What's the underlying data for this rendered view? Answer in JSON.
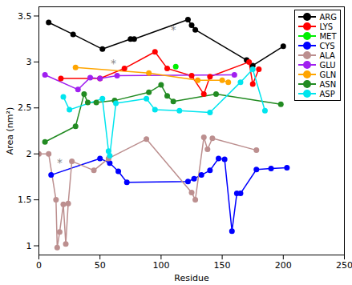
{
  "chart_data": {
    "type": "line",
    "marker": "circle",
    "legend": "top-right",
    "x_label": "Residue",
    "y_label": "Area (nm²)",
    "xlim": [
      0,
      250
    ],
    "xticks": [
      0,
      50,
      100,
      150,
      200,
      250
    ],
    "ylim": [
      0.9,
      3.6
    ],
    "yticks": [
      1,
      1.5,
      2,
      2.5,
      3,
      3.5
    ],
    "series": [
      {
        "name": "ARG",
        "color": "#000000",
        "x": [
          8,
          28,
          52,
          75,
          78,
          122,
          125,
          128,
          170,
          175,
          200
        ],
        "values": [
          3.43,
          3.3,
          3.14,
          3.25,
          3.25,
          3.46,
          3.4,
          3.35,
          3.02,
          2.96,
          3.17
        ]
      },
      {
        "name": "LYS",
        "color": "#ff0000",
        "x": [
          18,
          50,
          70,
          95,
          105,
          125,
          135,
          140,
          172,
          175,
          180
        ],
        "values": [
          2.82,
          2.82,
          2.93,
          3.11,
          2.93,
          2.85,
          2.65,
          2.84,
          3.0,
          2.76,
          2.92
        ]
      },
      {
        "name": "MET",
        "color": "#00ee00",
        "x": [
          112
        ],
        "values": [
          2.95
        ]
      },
      {
        "name": "CYS",
        "color": "#0000ff",
        "x": [
          10,
          50,
          58,
          65,
          72,
          122,
          127,
          133,
          140,
          147,
          152,
          158,
          162,
          165,
          178,
          190,
          203
        ],
        "values": [
          1.77,
          1.95,
          1.9,
          1.81,
          1.69,
          1.7,
          1.73,
          1.77,
          1.82,
          1.95,
          1.94,
          1.16,
          1.57,
          1.57,
          1.83,
          1.84,
          1.85
        ]
      },
      {
        "name": "ALA",
        "color": "#bc8f8f",
        "x": [
          0,
          8,
          14,
          15,
          17,
          20,
          22,
          24,
          27,
          45,
          57,
          88,
          125,
          128,
          135,
          138,
          142,
          178
        ],
        "values": [
          2.0,
          2.0,
          1.5,
          0.98,
          1.15,
          1.45,
          1.02,
          1.46,
          1.92,
          1.82,
          1.95,
          2.16,
          1.58,
          1.5,
          2.18,
          2.05,
          2.17,
          2.04
        ]
      },
      {
        "name": "GLU",
        "color": "#a020f0",
        "x": [
          5,
          32,
          42,
          50,
          64,
          160
        ],
        "values": [
          2.86,
          2.7,
          2.83,
          2.82,
          2.85,
          2.86
        ]
      },
      {
        "name": "GLN",
        "color": "#ffa500",
        "x": [
          30,
          90,
          130,
          150,
          155
        ],
        "values": [
          2.94,
          2.88,
          2.8,
          2.8,
          2.78
        ]
      },
      {
        "name": "ASN",
        "color": "#228b22",
        "x": [
          5,
          30,
          37,
          40,
          47,
          62,
          90,
          100,
          105,
          110,
          145,
          198
        ],
        "values": [
          2.13,
          2.3,
          2.65,
          2.56,
          2.56,
          2.58,
          2.67,
          2.75,
          2.63,
          2.57,
          2.65,
          2.54
        ]
      },
      {
        "name": "ASP",
        "color": "#00e5ee",
        "x": [
          20,
          25,
          52,
          57,
          58,
          63,
          88,
          95,
          115,
          140,
          165,
          175,
          185
        ],
        "values": [
          2.62,
          2.48,
          2.6,
          2.03,
          1.98,
          2.55,
          2.6,
          2.48,
          2.47,
          2.45,
          2.78,
          2.92,
          2.47
        ]
      }
    ],
    "annotations": [
      {
        "x": 110,
        "y": 3.35,
        "text": "*"
      },
      {
        "x": 61,
        "y": 2.98,
        "text": "*"
      },
      {
        "x": 17,
        "y": 1.9,
        "text": "*"
      }
    ]
  }
}
